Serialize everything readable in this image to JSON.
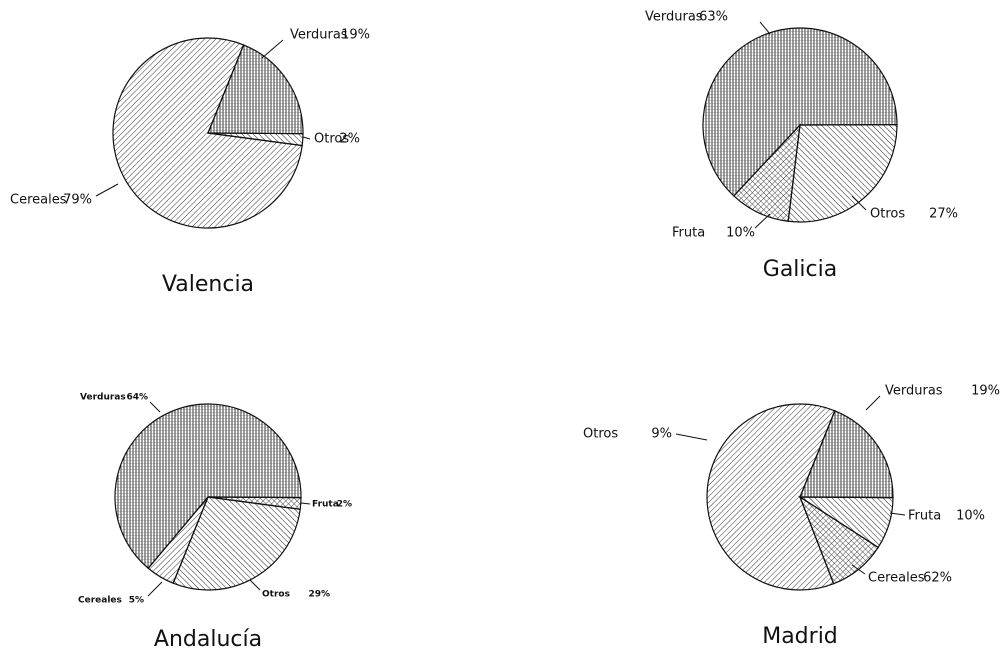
{
  "chart_data": [
    {
      "type": "pie",
      "title": "Valencia",
      "categories": [
        "Verduras",
        "Otros",
        "Cereales"
      ],
      "values": [
        19,
        2,
        79
      ],
      "value_labels": [
        "19%",
        "2%",
        "79%"
      ],
      "patterns": [
        "vertical",
        "back-diagonal",
        "diagonal"
      ]
    },
    {
      "type": "pie",
      "title": "Galicia",
      "categories": [
        "Verduras",
        "Otros",
        "Fruta"
      ],
      "values": [
        63,
        27,
        10
      ],
      "value_labels": [
        "63%",
        "27%",
        "10%"
      ],
      "patterns": [
        "vertical",
        "back-diagonal",
        "crosshatch"
      ]
    },
    {
      "type": "pie",
      "title": "Andalucía",
      "categories": [
        "Verduras",
        "Fruta",
        "Otros",
        "Cereales"
      ],
      "values": [
        64,
        2,
        29,
        5
      ],
      "value_labels": [
        "64%",
        "2%",
        "29%",
        "5%"
      ],
      "patterns": [
        "vertical",
        "crosshatch",
        "back-diagonal",
        "diagonal"
      ]
    },
    {
      "type": "pie",
      "title": "Madrid",
      "categories": [
        "Verduras",
        "Otros",
        "Fruta",
        "Cereales"
      ],
      "values": [
        19,
        9,
        10,
        62
      ],
      "value_labels": [
        "19%",
        "9%",
        "10%",
        "62%"
      ],
      "patterns": [
        "vertical",
        "back-diagonal",
        "crosshatch",
        "diagonal"
      ]
    }
  ]
}
